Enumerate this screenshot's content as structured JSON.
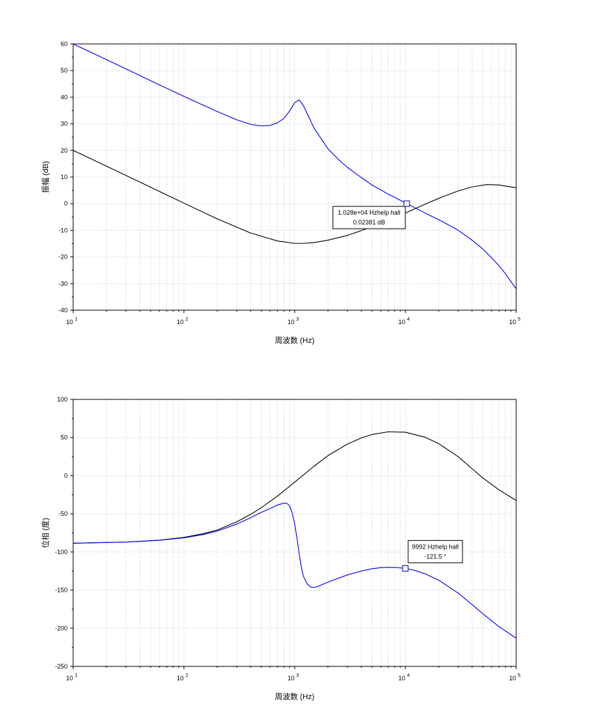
{
  "chart_data": [
    {
      "type": "line",
      "xscale": "log",
      "xlim": [
        10,
        100000
      ],
      "ylim": [
        -40,
        60
      ],
      "xlabel": "周波数 (Hz)",
      "ylabel": "振幅 (dB)",
      "x_ticks": [
        {
          "base": "10",
          "exp": "1"
        },
        {
          "base": "10",
          "exp": "2"
        },
        {
          "base": "10",
          "exp": "3"
        },
        {
          "base": "10",
          "exp": "4"
        },
        {
          "base": "10",
          "exp": "5"
        }
      ],
      "y_ticks": [
        "-40",
        "-30",
        "-20",
        "-10",
        "0",
        "10",
        "20",
        "30",
        "40",
        "50",
        "60"
      ],
      "grid": true,
      "series": [
        {
          "color": "#000000",
          "x": [
            10,
            20,
            50,
            100,
            200,
            400,
            700,
            1000,
            1200,
            1500,
            2000,
            3000,
            4000,
            6000,
            8000,
            10000,
            15000,
            20000,
            30000,
            40000,
            55000,
            70000,
            100000
          ],
          "y": [
            20,
            14.1,
            6.2,
            0.2,
            -5.7,
            -11.0,
            -14.0,
            -14.9,
            -14.9,
            -14.6,
            -13.7,
            -11.9,
            -10.1,
            -7.4,
            -5.1,
            -3.5,
            -0.2,
            2.0,
            4.8,
            6.3,
            7.2,
            7.0,
            6.0
          ]
        },
        {
          "color": "#0000ff",
          "x": [
            10,
            20,
            50,
            100,
            200,
            300,
            400,
            500,
            600,
            700,
            800,
            900,
            1000,
            1100,
            1200,
            1300,
            1500,
            2000,
            2500,
            3000,
            4000,
            5000,
            7000,
            10000,
            15000,
            20000,
            30000,
            40000,
            50000,
            60000,
            70000,
            80000,
            100000
          ],
          "y": [
            60,
            54.1,
            46.2,
            40.3,
            34.6,
            31.5,
            29.8,
            29.2,
            29.4,
            30.4,
            32.0,
            34.8,
            37.9,
            39.0,
            36.8,
            33.8,
            28.3,
            20.6,
            16.5,
            13.6,
            9.8,
            7.0,
            3.6,
            0.3,
            -3.5,
            -6.0,
            -10.0,
            -13.7,
            -17.0,
            -20.3,
            -23.3,
            -26.3,
            -32.0
          ]
        }
      ],
      "datatip": {
        "x": 10280,
        "y": 0.02381,
        "line1": "1.028e+04 Hzhelp hall",
        "line2": "0.02381 dB"
      }
    },
    {
      "type": "line",
      "xscale": "log",
      "xlim": [
        10,
        100000
      ],
      "ylim": [
        -250,
        100
      ],
      "xlabel": "周波数 (Hz)",
      "ylabel": "位相 (度)",
      "x_ticks": [
        {
          "base": "10",
          "exp": "1"
        },
        {
          "base": "10",
          "exp": "2"
        },
        {
          "base": "10",
          "exp": "3"
        },
        {
          "base": "10",
          "exp": "4"
        },
        {
          "base": "10",
          "exp": "5"
        }
      ],
      "y_ticks": [
        "-250",
        "-200",
        "-150",
        "-100",
        "-50",
        "0",
        "50",
        "100"
      ],
      "grid": true,
      "series": [
        {
          "color": "#000000",
          "x": [
            10,
            30,
            60,
            100,
            150,
            200,
            300,
            400,
            500,
            700,
            1000,
            1500,
            2000,
            3000,
            4000,
            5000,
            7000,
            10000,
            15000,
            20000,
            30000,
            40000,
            50000,
            70000,
            100000
          ],
          "y": [
            -88.5,
            -87.0,
            -84.5,
            -80.9,
            -76.0,
            -71.2,
            -60.5,
            -50.7,
            -41.9,
            -26.7,
            -8.5,
            12.5,
            26.3,
            41.5,
            49.5,
            54.0,
            57.5,
            57.0,
            50.5,
            42.0,
            24.9,
            9.2,
            -3.0,
            -18.5,
            -32.5
          ]
        },
        {
          "color": "#0000ff",
          "x": [
            10,
            30,
            60,
            100,
            150,
            200,
            300,
            400,
            500,
            600,
            700,
            800,
            850,
            900,
            950,
            1000,
            1050,
            1100,
            1150,
            1200,
            1300,
            1400,
            1500,
            1600,
            2000,
            3000,
            4000,
            5000,
            6000,
            7000,
            8000,
            10000,
            12000,
            15000,
            20000,
            30000,
            40000,
            50000,
            70000,
            100000
          ],
          "y": [
            -88.5,
            -87.1,
            -84.7,
            -81.5,
            -77.1,
            -72.6,
            -63.5,
            -55.0,
            -48.0,
            -43.0,
            -38.5,
            -36.0,
            -36.3,
            -39.5,
            -49.0,
            -63.0,
            -82.0,
            -103.0,
            -120.0,
            -132.0,
            -142.0,
            -146.0,
            -146.5,
            -145.5,
            -139.5,
            -130.0,
            -125.0,
            -122.0,
            -120.5,
            -120.2,
            -120.3,
            -121.5,
            -124.0,
            -128.5,
            -137.0,
            -154.0,
            -169.0,
            -181.0,
            -198.0,
            -213.0
          ]
        }
      ],
      "datatip": {
        "x": 9992,
        "y": -121.5,
        "line1": "9992 Hzhelp hall",
        "line2": "-121.5 °"
      }
    }
  ]
}
